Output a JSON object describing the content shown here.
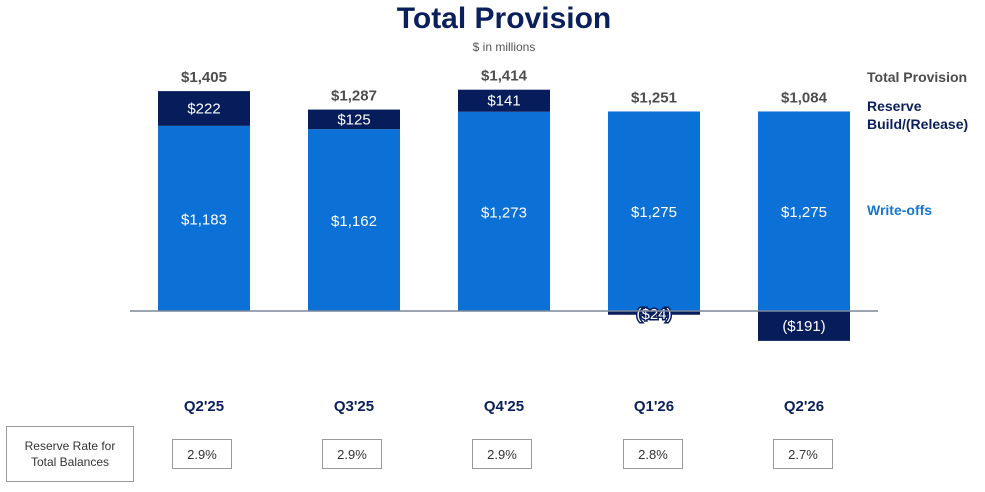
{
  "title": "Total Provision",
  "subtitle": "$ in millions",
  "legend": {
    "total": "Total Provision",
    "reserve": "Reserve\nBuild/(Release)",
    "writeoffs": "Write-offs"
  },
  "reserve_rate": {
    "label": "Reserve Rate for\nTotal Balances",
    "values": [
      "2.9%",
      "2.9%",
      "2.9%",
      "2.8%",
      "2.7%"
    ]
  },
  "colors": {
    "writeoffs": "#0c71d6",
    "reserve": "#071c5b",
    "total_label": "#4d4d4d",
    "category_label": "#0b1f5c",
    "baseline": "#7b879b"
  },
  "chart_data": {
    "type": "bar",
    "stacked": true,
    "categories": [
      "Q2'25",
      "Q3'25",
      "Q4'25",
      "Q1'26",
      "Q2'26"
    ],
    "series": [
      {
        "name": "Write-offs",
        "values": [
          1183,
          1162,
          1273,
          1275,
          1275
        ],
        "labels": [
          "$1,183",
          "$1,162",
          "$1,273",
          "$1,275",
          "$1,275"
        ]
      },
      {
        "name": "Reserve Build/(Release)",
        "values": [
          222,
          125,
          141,
          -24,
          -191
        ],
        "labels": [
          "$222",
          "$125",
          "$141",
          "($24)",
          "($191)"
        ]
      }
    ],
    "totals": {
      "name": "Total Provision",
      "values": [
        1405,
        1287,
        1414,
        1251,
        1084
      ],
      "labels": [
        "$1,405",
        "$1,287",
        "$1,414",
        "$1,251",
        "$1,084"
      ]
    },
    "unit": "$ in millions",
    "ylim": [
      -191,
      1414
    ]
  }
}
